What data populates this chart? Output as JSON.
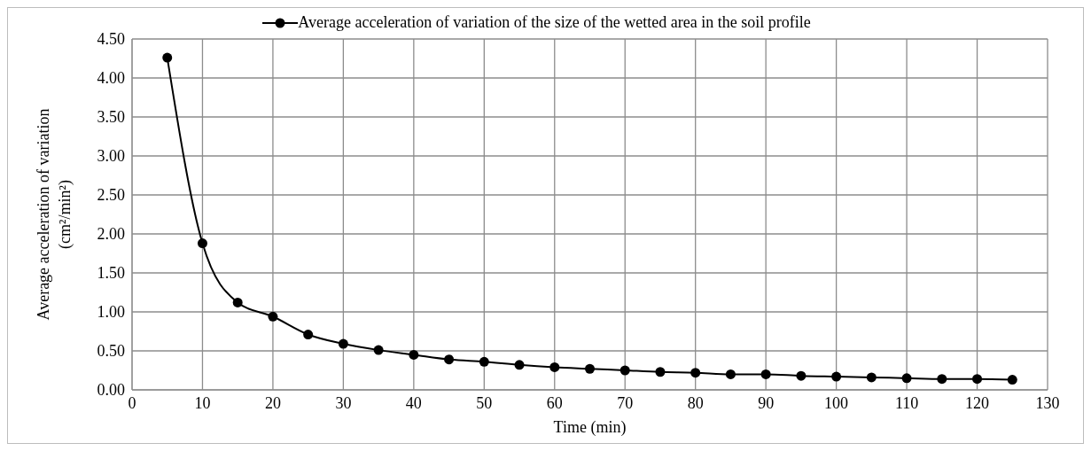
{
  "chart_data": {
    "type": "line",
    "xlabel": "Time (min)",
    "ylabel": "Average acceleration of variation (cm²/min²)",
    "x": [
      5,
      10,
      15,
      20,
      25,
      30,
      35,
      40,
      45,
      50,
      55,
      60,
      65,
      70,
      75,
      80,
      85,
      90,
      95,
      100,
      105,
      110,
      115,
      120,
      125
    ],
    "series": [
      {
        "name": "Average acceleration of variation of the size of the wetted area in the soil profile",
        "color": "#000000",
        "values": [
          4.26,
          1.88,
          1.12,
          0.94,
          0.71,
          0.59,
          0.51,
          0.45,
          0.39,
          0.36,
          0.32,
          0.29,
          0.27,
          0.25,
          0.23,
          0.22,
          0.2,
          0.2,
          0.18,
          0.17,
          0.16,
          0.15,
          0.14,
          0.14,
          0.13
        ]
      }
    ],
    "xlim": [
      0,
      130
    ],
    "xticks": [
      0,
      10,
      20,
      30,
      40,
      50,
      60,
      70,
      80,
      90,
      100,
      110,
      120,
      130
    ],
    "ylim": [
      0,
      4.5
    ],
    "yticks": [
      {
        "value": 0,
        "label": "0.00"
      },
      {
        "value": 0.5,
        "label": "0.50"
      },
      {
        "value": 1,
        "label": "1.00"
      },
      {
        "value": 1.5,
        "label": "1.50"
      },
      {
        "value": 2,
        "label": "2.00"
      },
      {
        "value": 2.5,
        "label": "2.50"
      },
      {
        "value": 3,
        "label": "3.00"
      },
      {
        "value": 3.5,
        "label": "3.50"
      },
      {
        "value": 4,
        "label": "4.00"
      },
      {
        "value": 4.5,
        "label": "4.50"
      }
    ],
    "grid": true,
    "legend": "top",
    "marker": "circle",
    "line_style": "solid"
  }
}
